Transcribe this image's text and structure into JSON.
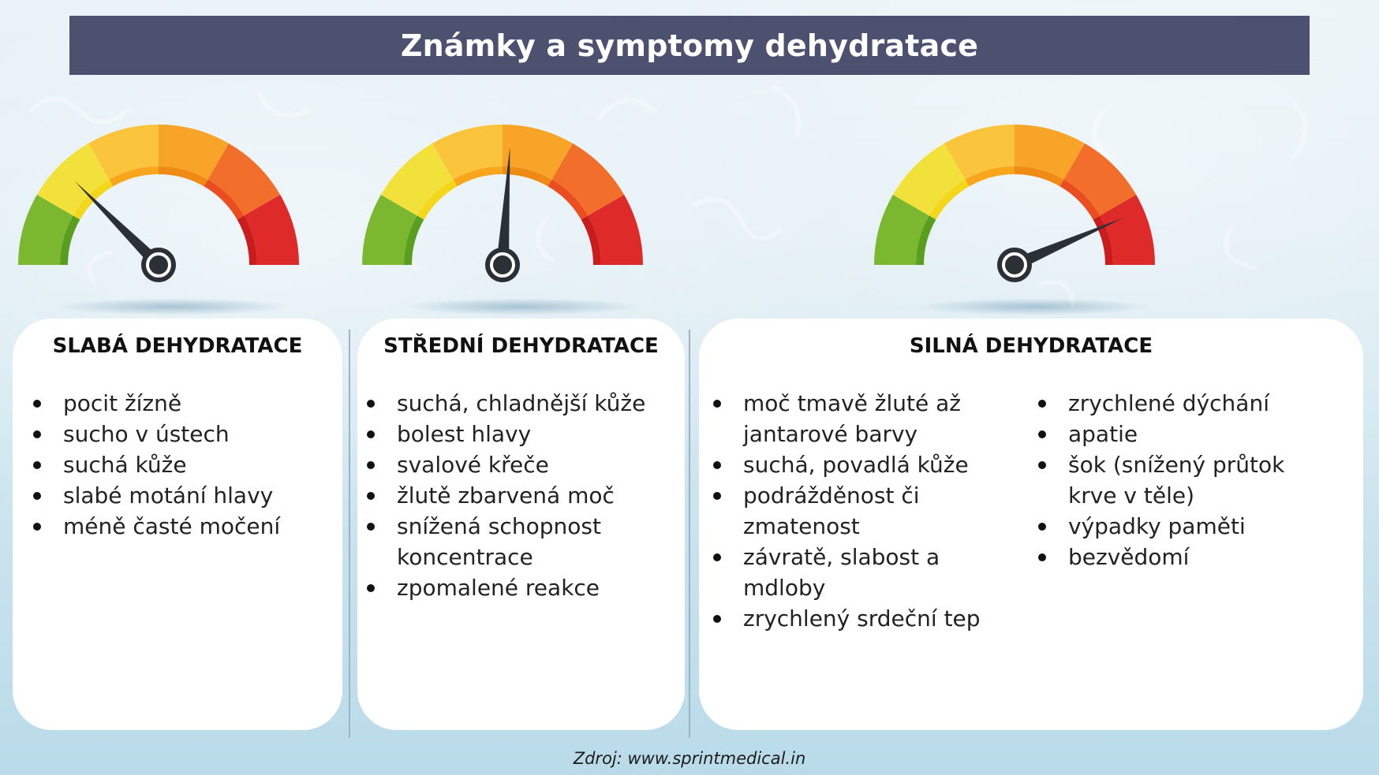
{
  "title": "Známky a symptomy dehydratace",
  "source": "Zdroj: www.sprintmedical.in",
  "colors": {
    "title_bar": "#4d5170",
    "green": "#7cb82f",
    "yellow": "#f3e13b",
    "light_orange": "#fbc43d",
    "orange": "#f7a428",
    "dark_orange": "#f26e2b",
    "red": "#df2a2a",
    "needle": "#2b2f36"
  },
  "gauges": [
    {
      "name": "mild",
      "needle_level": 0.25
    },
    {
      "name": "moderate",
      "needle_level": 0.52
    },
    {
      "name": "severe",
      "needle_level": 0.87
    }
  ],
  "cards": {
    "mild": {
      "heading": "SLABÁ DEHYDRATACE",
      "items": [
        "pocit žízně",
        "sucho v ústech",
        "suchá kůže",
        "slabé motání hlavy",
        "méně časté močení"
      ]
    },
    "moderate": {
      "heading": "STŘEDNÍ DEHYDRATACE",
      "items": [
        "suchá, chladnější kůže",
        "bolest hlavy",
        "svalové křeče",
        "žlutě zbarvená moč",
        "snížená schopnost koncentrace",
        "zpomalené reakce"
      ]
    },
    "severe": {
      "heading": "SILNÁ DEHYDRATACE",
      "items_left": [
        "moč tmavě žluté až jantarové barvy",
        "suchá, povadlá kůže",
        "podrážděnost či zmatenost",
        "závratě, slabost a mdloby",
        "zrychlený srdeční tep"
      ],
      "items_right": [
        "zrychlené dýchání",
        "apatie",
        "šok (snížený průtok krve v těle)",
        "výpadky paměti",
        "bezvědomí"
      ]
    }
  }
}
